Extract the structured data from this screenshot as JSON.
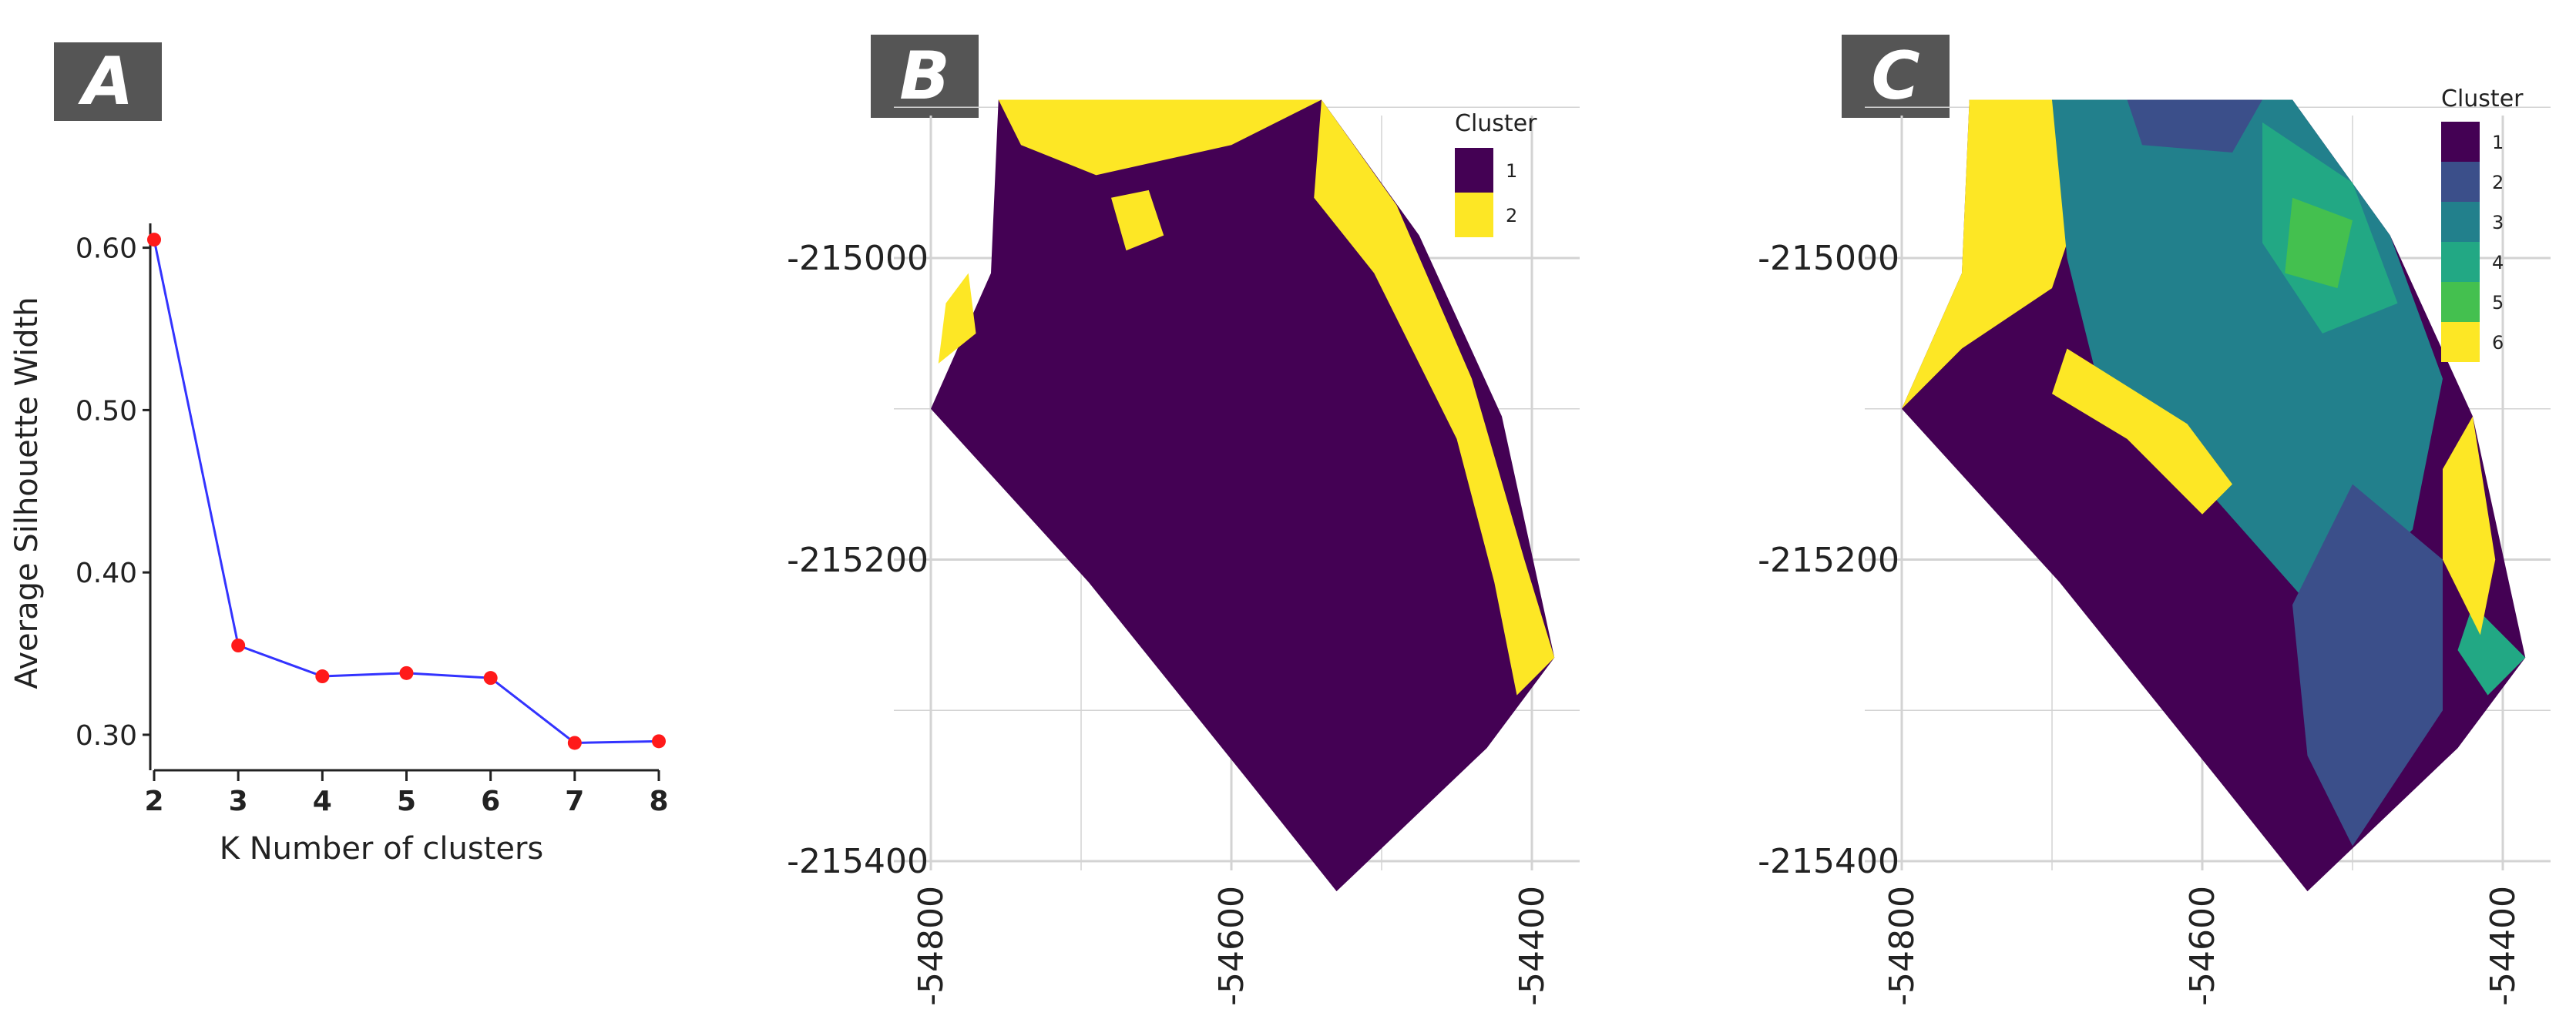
{
  "panels": {
    "a_tag": "A",
    "b_tag": "B",
    "c_tag": "C"
  },
  "colors": {
    "line": "#3333ff",
    "marker": "#ff1a1a",
    "viridis_1": "#440154",
    "viridis_2": "#3b4f8a",
    "viridis_3": "#22808c",
    "viridis_4": "#22a884",
    "viridis_5": "#44c04f",
    "viridis_6": "#fde725",
    "grid": "#d3d3d3"
  },
  "chart_data": [
    {
      "type": "line",
      "x": [
        2,
        3,
        4,
        5,
        6,
        7,
        8
      ],
      "values": [
        0.605,
        0.355,
        0.336,
        0.338,
        0.335,
        0.295,
        0.296
      ],
      "xlabel": "K Number of clusters",
      "ylabel": "Average Silhouette Width",
      "xticks": [
        "2",
        "3",
        "4",
        "5",
        "6",
        "7",
        "8"
      ],
      "yticks": [
        "0.30",
        "0.40",
        "0.50",
        "0.60"
      ],
      "ylim": [
        0.29,
        0.615
      ]
    },
    {
      "type": "heatmap",
      "legend_title": "Cluster",
      "legend_items": [
        "1",
        "2"
      ],
      "xticks": [
        "-54800",
        "-54600",
        "-54400"
      ],
      "yticks": [
        "-215000",
        "-215200",
        "-215400"
      ],
      "xlim": [
        -54800,
        -54370
      ],
      "ylim": [
        -215440,
        -214900
      ]
    },
    {
      "type": "heatmap",
      "legend_title": "Cluster",
      "legend_items": [
        "1",
        "2",
        "3",
        "4",
        "5",
        "6"
      ],
      "xticks": [
        "-54800",
        "-54600",
        "-54400"
      ],
      "yticks": [
        "-215000",
        "-215200",
        "-215400"
      ],
      "xlim": [
        -54800,
        -54370
      ],
      "ylim": [
        -215440,
        -214900
      ]
    }
  ]
}
